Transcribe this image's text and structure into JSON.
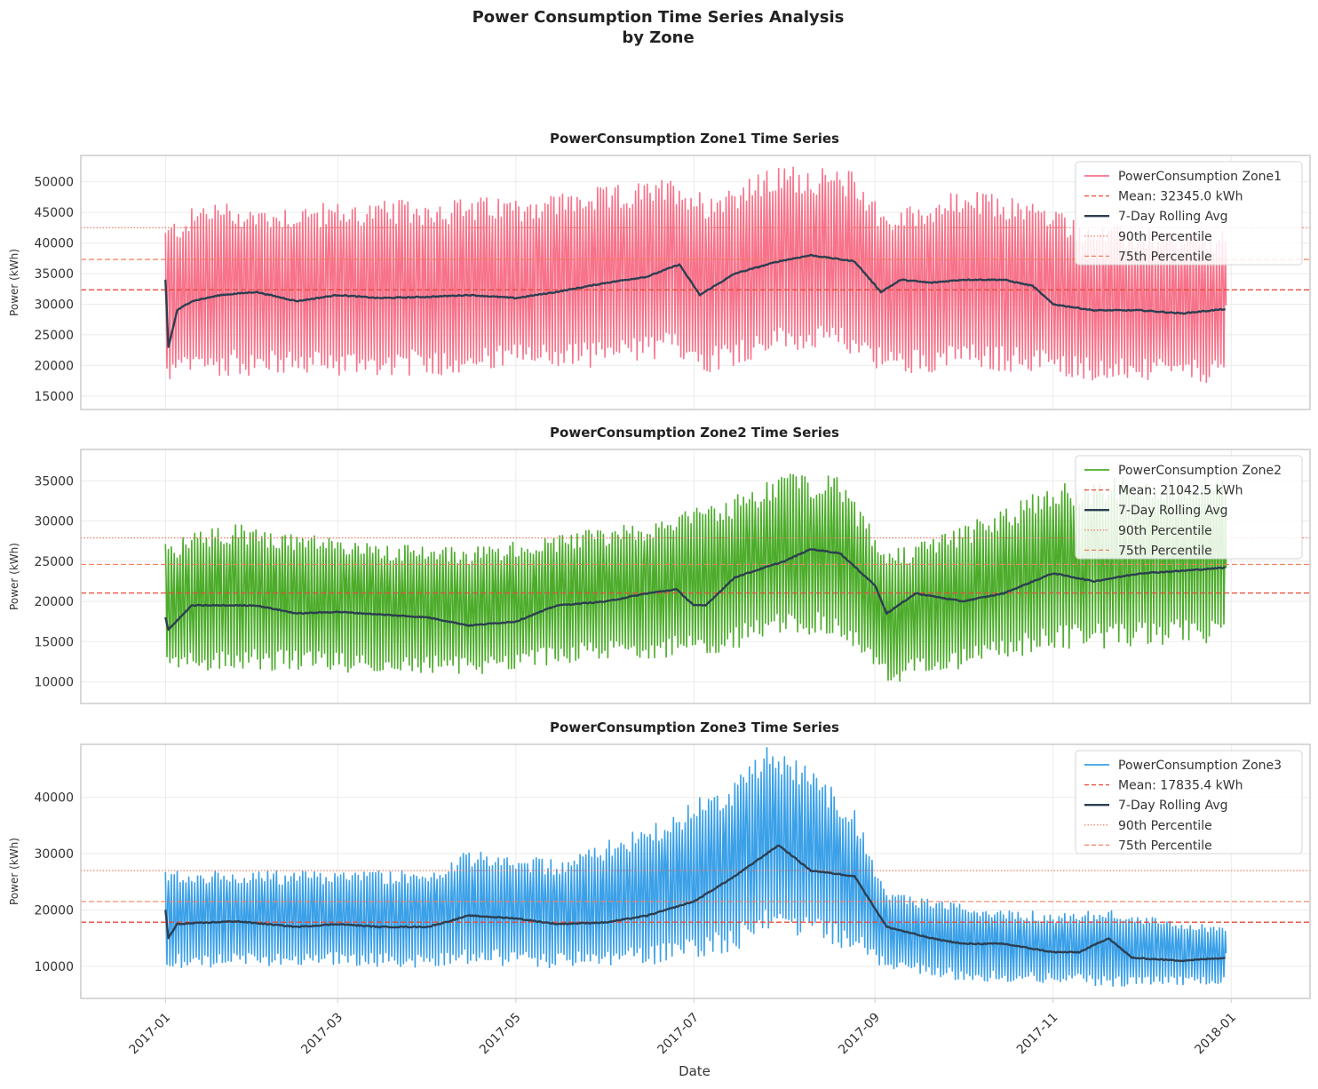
{
  "figure": {
    "title_line1": "Power Consumption Time Series Analysis",
    "title_line2": "by Zone",
    "xlabel": "Date",
    "x_tick_labels": [
      "2017-01",
      "2017-03",
      "2017-05",
      "2017-07",
      "2017-09",
      "2017-11",
      "2018-01"
    ],
    "rolling_color": "#2c3e50",
    "mean_color": "#e74c3c",
    "pct90_color": "#e8735a",
    "pct75_color": "#f08060"
  },
  "chart_data": [
    {
      "type": "line",
      "title": "PowerConsumption Zone1 Time Series",
      "ylabel": "Power (kWh)",
      "color": "#f7728a",
      "ylim": [
        12800,
        54300
      ],
      "y_ticks": [
        15000,
        20000,
        25000,
        30000,
        35000,
        40000,
        45000,
        50000
      ],
      "y_tick_labels": [
        "15000",
        "20000",
        "25000",
        "30000",
        "35000",
        "40000",
        "45000",
        "50000"
      ],
      "mean": 32345.0,
      "p90": 42500,
      "p75": 37300,
      "legend": [
        "PowerConsumption Zone1",
        "Mean: 32345.0 kWh",
        "7-Day Rolling Avg",
        "90th Percentile",
        "75th Percentile"
      ],
      "x_range": [
        "2017-01-01",
        "2017-12-30"
      ],
      "envelope": {
        "x": [
          "2017-01-01",
          "2017-01-15",
          "2017-02-01",
          "2017-03-01",
          "2017-04-01",
          "2017-05-01",
          "2017-06-01",
          "2017-06-25",
          "2017-07-05",
          "2017-08-01",
          "2017-08-25",
          "2017-09-05",
          "2017-10-01",
          "2017-10-25",
          "2017-11-15",
          "2017-12-30"
        ],
        "max": [
          41000,
          45000,
          44000,
          44500,
          45000,
          45500,
          47000,
          48500,
          46000,
          50500,
          49500,
          43000,
          46500,
          45000,
          41000,
          40000
        ],
        "min": [
          19000,
          20500,
          20500,
          20500,
          20500,
          21500,
          22000,
          23500,
          21000,
          24500,
          24000,
          20500,
          21500,
          21000,
          19500,
          19000
        ]
      },
      "rolling": {
        "x": [
          "2017-01-01",
          "2017-01-02",
          "2017-01-05",
          "2017-01-10",
          "2017-01-20",
          "2017-02-01",
          "2017-02-15",
          "2017-03-01",
          "2017-03-15",
          "2017-04-01",
          "2017-04-15",
          "2017-05-01",
          "2017-05-15",
          "2017-06-01",
          "2017-06-15",
          "2017-06-26",
          "2017-07-03",
          "2017-07-15",
          "2017-07-30",
          "2017-08-10",
          "2017-08-25",
          "2017-09-03",
          "2017-09-10",
          "2017-09-20",
          "2017-10-01",
          "2017-10-15",
          "2017-10-25",
          "2017-11-01",
          "2017-11-15",
          "2017-12-01",
          "2017-12-15",
          "2017-12-30"
        ],
        "y": [
          34000,
          23000,
          29000,
          30500,
          31500,
          32000,
          30500,
          31500,
          31000,
          31200,
          31500,
          31000,
          32000,
          33500,
          34500,
          36500,
          31500,
          35000,
          37000,
          38000,
          37000,
          32000,
          34000,
          33500,
          34000,
          34000,
          33000,
          30000,
          29000,
          29000,
          28500,
          29200
        ]
      }
    },
    {
      "type": "line",
      "title": "PowerConsumption Zone2 Time Series",
      "ylabel": "Power (kWh)",
      "color": "#4cac2a",
      "ylim": [
        7300,
        38900
      ],
      "y_ticks": [
        10000,
        15000,
        20000,
        25000,
        30000,
        35000
      ],
      "y_tick_labels": [
        "10000",
        "15000",
        "20000",
        "25000",
        "30000",
        "35000"
      ],
      "mean": 21042.5,
      "p90": 27900,
      "p75": 24600,
      "legend": [
        "PowerConsumption Zone2",
        "Mean: 21042.5 kWh",
        "7-Day Rolling Avg",
        "90th Percentile",
        "75th Percentile"
      ],
      "x_range": [
        "2017-01-01",
        "2017-12-30"
      ],
      "envelope": {
        "x": [
          "2017-01-01",
          "2017-01-20",
          "2017-03-01",
          "2017-04-15",
          "2017-05-15",
          "2017-06-25",
          "2017-07-10",
          "2017-08-01",
          "2017-08-20",
          "2017-09-05",
          "2017-10-01",
          "2017-11-01",
          "2017-12-01",
          "2017-12-30"
        ],
        "max": [
          26000,
          28500,
          26500,
          25500,
          27000,
          29500,
          31000,
          34500,
          34000,
          25000,
          28000,
          33000,
          34000,
          34500
        ],
        "min": [
          12000,
          13000,
          12500,
          12000,
          13500,
          14500,
          15000,
          17500,
          17000,
          11000,
          13000,
          15500,
          16000,
          16500
        ]
      },
      "rolling": {
        "x": [
          "2017-01-01",
          "2017-01-02",
          "2017-01-10",
          "2017-02-01",
          "2017-02-15",
          "2017-03-01",
          "2017-04-01",
          "2017-04-15",
          "2017-05-01",
          "2017-05-15",
          "2017-06-01",
          "2017-06-15",
          "2017-06-25",
          "2017-07-01",
          "2017-07-05",
          "2017-07-15",
          "2017-08-01",
          "2017-08-10",
          "2017-08-20",
          "2017-09-01",
          "2017-09-05",
          "2017-09-15",
          "2017-10-01",
          "2017-10-15",
          "2017-11-01",
          "2017-11-15",
          "2017-12-01",
          "2017-12-15",
          "2017-12-30"
        ],
        "y": [
          18000,
          16500,
          19500,
          19500,
          18500,
          18700,
          18000,
          17000,
          17500,
          19500,
          20000,
          21000,
          21500,
          19500,
          19500,
          23000,
          25000,
          26500,
          26000,
          22000,
          18500,
          21000,
          20000,
          21000,
          23500,
          22500,
          23500,
          23800,
          24200
        ]
      }
    },
    {
      "type": "line",
      "title": "PowerConsumption Zone3 Time Series",
      "ylabel": "Power (kWh)",
      "color": "#3aa0e8",
      "ylim": [
        4300,
        49400
      ],
      "y_ticks": [
        10000,
        20000,
        30000,
        40000
      ],
      "y_tick_labels": [
        "10000",
        "20000",
        "30000",
        "40000"
      ],
      "mean": 17835.4,
      "p90": 27000,
      "p75": 21500,
      "legend": [
        "PowerConsumption Zone3",
        "Mean: 17835.4 kWh",
        "7-Day Rolling Avg",
        "90th Percentile",
        "75th Percentile"
      ],
      "x_range": [
        "2017-01-01",
        "2017-12-30"
      ],
      "envelope": {
        "x": [
          "2017-01-01",
          "2017-03-01",
          "2017-04-01",
          "2017-04-15",
          "2017-05-15",
          "2017-06-15",
          "2017-07-15",
          "2017-07-25",
          "2017-08-10",
          "2017-08-25",
          "2017-09-05",
          "2017-10-01",
          "2017-11-01",
          "2017-11-20",
          "2017-12-30"
        ],
        "max": [
          26000,
          25500,
          26000,
          29000,
          27500,
          33000,
          41000,
          47000,
          43000,
          36000,
          22000,
          20000,
          18500,
          19000,
          16000
        ],
        "min": [
          11000,
          11500,
          11000,
          12000,
          11000,
          12000,
          15000,
          18500,
          17500,
          14500,
          10500,
          8500,
          8000,
          7500,
          7500
        ]
      },
      "rolling": {
        "x": [
          "2017-01-01",
          "2017-01-02",
          "2017-01-05",
          "2017-01-25",
          "2017-02-15",
          "2017-03-01",
          "2017-03-15",
          "2017-04-01",
          "2017-04-15",
          "2017-05-01",
          "2017-05-15",
          "2017-06-01",
          "2017-06-15",
          "2017-07-01",
          "2017-07-15",
          "2017-07-30",
          "2017-08-10",
          "2017-08-25",
          "2017-09-05",
          "2017-09-20",
          "2017-10-01",
          "2017-10-15",
          "2017-11-01",
          "2017-11-10",
          "2017-11-20",
          "2017-11-28",
          "2017-12-15",
          "2017-12-30"
        ],
        "y": [
          20000,
          15000,
          17500,
          18000,
          17000,
          17500,
          17000,
          17000,
          19000,
          18500,
          17500,
          17800,
          19000,
          21500,
          26000,
          31500,
          27000,
          26000,
          17000,
          15000,
          14000,
          14000,
          12500,
          12500,
          15000,
          11500,
          11000,
          11500
        ]
      }
    }
  ]
}
